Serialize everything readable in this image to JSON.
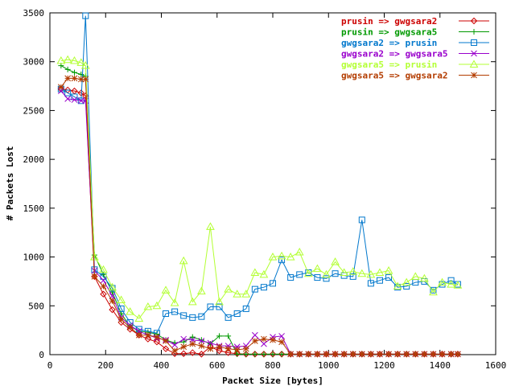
{
  "chart_data": {
    "type": "line",
    "title": "",
    "xlabel": "Packet Size [bytes]",
    "ylabel": "# Packets Lost",
    "xlim": [
      0,
      1600
    ],
    "ylim": [
      0,
      3500
    ],
    "xticks": [
      0,
      200,
      400,
      600,
      800,
      1000,
      1200,
      1400,
      1600
    ],
    "yticks": [
      0,
      500,
      1000,
      1500,
      2000,
      2500,
      3000,
      3500
    ],
    "grid": false,
    "legend_position": "top-right",
    "x": [
      40,
      64,
      88,
      112,
      128,
      160,
      192,
      224,
      256,
      288,
      320,
      352,
      384,
      416,
      448,
      480,
      512,
      544,
      576,
      608,
      640,
      672,
      704,
      736,
      768,
      800,
      832,
      864,
      896,
      928,
      960,
      992,
      1024,
      1056,
      1088,
      1120,
      1152,
      1184,
      1216,
      1248,
      1280,
      1312,
      1344,
      1376,
      1408,
      1440,
      1464
    ],
    "series": [
      {
        "name": "prusin => gwgsara2",
        "color": "#cc0000",
        "marker": "diamond",
        "values": [
          2720,
          2710,
          2700,
          2680,
          2650,
          800,
          620,
          460,
          330,
          260,
          200,
          160,
          130,
          60,
          10,
          10,
          20,
          5,
          80,
          40,
          20,
          10,
          5,
          5,
          5,
          5,
          5,
          5,
          5,
          5,
          5,
          5,
          5,
          5,
          5,
          5,
          5,
          5,
          5,
          5,
          5,
          5,
          5,
          5,
          5,
          5,
          5
        ]
      },
      {
        "name": "prusin => gwgsara5",
        "color": "#009900",
        "marker": "plus",
        "values": [
          2960,
          2920,
          2890,
          2870,
          2850,
          1020,
          820,
          640,
          420,
          290,
          240,
          230,
          210,
          150,
          120,
          130,
          180,
          150,
          110,
          190,
          190,
          5,
          5,
          5,
          5,
          5,
          5,
          5,
          5,
          5,
          5,
          5,
          5,
          5,
          5,
          5,
          5,
          5,
          5,
          5,
          5,
          5,
          5,
          5,
          5,
          5,
          5
        ]
      },
      {
        "name": "gwgsara2 => prusin",
        "color": "#0077cc",
        "marker": "square",
        "values": [
          2720,
          2680,
          2640,
          2600,
          3470,
          870,
          800,
          680,
          470,
          330,
          260,
          240,
          220,
          420,
          440,
          400,
          380,
          390,
          490,
          490,
          380,
          420,
          470,
          670,
          690,
          730,
          970,
          790,
          820,
          840,
          790,
          780,
          830,
          810,
          800,
          1380,
          730,
          760,
          790,
          690,
          700,
          740,
          750,
          660,
          720,
          760,
          720
        ]
      },
      {
        "name": "gwgsara2 => gwgsara5",
        "color": "#9900cc",
        "marker": "x",
        "values": [
          2700,
          2620,
          2610,
          2600,
          2600,
          860,
          760,
          600,
          380,
          300,
          240,
          200,
          170,
          150,
          100,
          160,
          150,
          140,
          120,
          90,
          90,
          80,
          90,
          200,
          110,
          180,
          190,
          5,
          5,
          5,
          5,
          5,
          5,
          5,
          5,
          5,
          5,
          5,
          5,
          5,
          5,
          5,
          5,
          5,
          5,
          5,
          5
        ]
      },
      {
        "name": "gwgsara5 => prusin",
        "color": "#b3ff33",
        "marker": "triangle",
        "values": [
          3010,
          3020,
          3010,
          2990,
          2960,
          1000,
          870,
          690,
          560,
          440,
          370,
          490,
          500,
          660,
          530,
          960,
          540,
          650,
          1310,
          540,
          670,
          620,
          620,
          840,
          820,
          1000,
          1010,
          1000,
          1050,
          830,
          880,
          820,
          950,
          840,
          850,
          830,
          820,
          840,
          860,
          700,
          740,
          800,
          780,
          640,
          740,
          720,
          710
        ]
      },
      {
        "name": "gwgsara5 => gwgsara2",
        "color": "#b33c00",
        "marker": "star",
        "values": [
          2740,
          2830,
          2830,
          2820,
          2820,
          800,
          700,
          550,
          360,
          280,
          200,
          200,
          180,
          140,
          40,
          80,
          110,
          90,
          60,
          80,
          60,
          50,
          60,
          140,
          160,
          150,
          130,
          5,
          5,
          5,
          5,
          5,
          5,
          5,
          5,
          5,
          5,
          5,
          5,
          5,
          5,
          5,
          5,
          5,
          5,
          5,
          5
        ]
      }
    ]
  }
}
